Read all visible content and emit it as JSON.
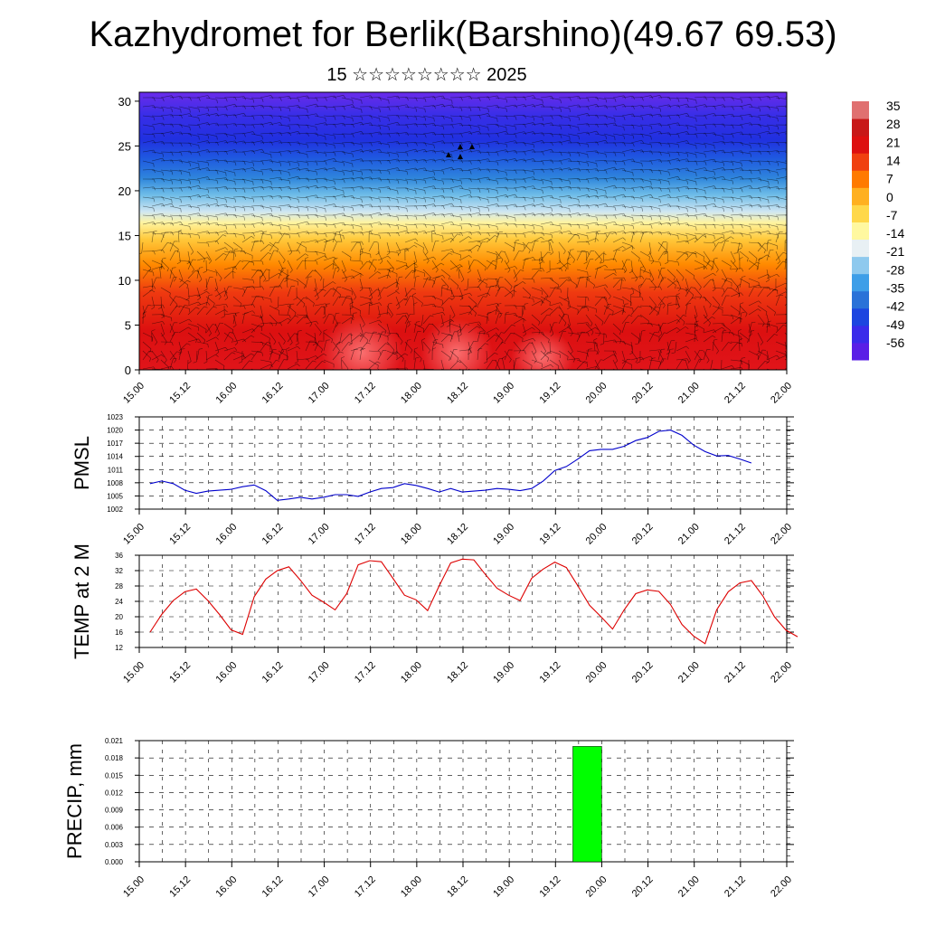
{
  "title": "Kazhydromet for Berlik(Barshino)(49.67 69.53)",
  "subtitle": "15 ☆☆☆☆☆☆☆☆ 2025",
  "colors": {
    "pmsl_line": "#0000cc",
    "temp_line": "#dd0000",
    "precip_bar": "#00ff00",
    "palette": [
      "#5a1fe6",
      "#3a2bea",
      "#1c45e0",
      "#2a72d8",
      "#3d9ee8",
      "#8ec9ee",
      "#e8f0f4",
      "#fff8a0",
      "#ffd84a",
      "#ffb020",
      "#ff7a00",
      "#f04010",
      "#dd1010",
      "#c81818",
      "#e07070"
    ]
  },
  "chart_data": [
    {
      "type": "heatmap",
      "name": "vertical-section",
      "x_ticks": [
        "15.00",
        "15.12",
        "16.00",
        "16.12",
        "17.00",
        "17.12",
        "18.00",
        "18.12",
        "19.00",
        "19.12",
        "20.00",
        "20.12",
        "21.00",
        "21.12",
        "22.00"
      ],
      "y_ticks": [
        "0",
        "5",
        "10",
        "15",
        "20",
        "25",
        "30"
      ],
      "ylim": [
        0,
        31
      ],
      "colorbar_labels": [
        "35",
        "28",
        "21",
        "14",
        "7",
        "0",
        "-7",
        "-14",
        "-21",
        "-28",
        "-35",
        "-42",
        "-49",
        "-56"
      ]
    },
    {
      "type": "line",
      "name": "pmsl",
      "ylabel": "PMSL",
      "x_ticks": [
        "15.00",
        "15.12",
        "16.00",
        "16.12",
        "17.00",
        "17.12",
        "18.00",
        "18.12",
        "19.00",
        "19.12",
        "20.00",
        "20.12",
        "21.00",
        "21.12",
        "22.00"
      ],
      "y_ticks": [
        "1023",
        "1020",
        "1017",
        "1014",
        "1011",
        "1008",
        "1005",
        "1002"
      ],
      "ylim": [
        1002,
        1023
      ],
      "values": [
        1007.8,
        1008.4,
        1007.8,
        1006.3,
        1005.6,
        1006.1,
        1006.3,
        1006.5,
        1007.1,
        1007.5,
        1006.2,
        1004,
        1004.3,
        1004.7,
        1004.3,
        1004.7,
        1005.3,
        1005.3,
        1004.9,
        1005.9,
        1006.7,
        1006.9,
        1007.8,
        1007.4,
        1006.7,
        1005.9,
        1006.7,
        1005.9,
        1006.1,
        1006.3,
        1006.7,
        1006.5,
        1006.2,
        1006.7,
        1008.4,
        1010.8,
        1011.7,
        1013.4,
        1015.3,
        1015.6,
        1015.6,
        1016.3,
        1017.6,
        1018.3,
        1019.7,
        1020,
        1018.8,
        1016.6,
        1015.1,
        1014.1,
        1014.2,
        1013.4,
        1012.5
      ]
    },
    {
      "type": "line",
      "name": "temp",
      "ylabel": "TEMP at 2 M",
      "x_ticks": [
        "15.00",
        "15.12",
        "16.00",
        "16.12",
        "17.00",
        "17.12",
        "18.00",
        "18.12",
        "19.00",
        "19.12",
        "20.00",
        "20.12",
        "21.00",
        "21.12",
        "22.00"
      ],
      "y_ticks": [
        "36",
        "32",
        "28",
        "24",
        "20",
        "16",
        "12"
      ],
      "ylim": [
        12,
        36
      ],
      "values": [
        16,
        20.6,
        24.2,
        26.5,
        27.2,
        24.2,
        20.6,
        16.6,
        15.4,
        25.2,
        29.8,
        32,
        33,
        29.5,
        25.6,
        23.8,
        21.8,
        26,
        33.5,
        34.6,
        34.3,
        30,
        25.6,
        24.4,
        21.6,
        28,
        34,
        35,
        34.8,
        31,
        27.4,
        25.6,
        24.2,
        30,
        32.4,
        34.2,
        32.8,
        28,
        23,
        20,
        16.8,
        21.8,
        26,
        27,
        26.6,
        23.2,
        18,
        15,
        13,
        21.8,
        26.5,
        28.8,
        29.4,
        25.4,
        20,
        16.5,
        14.8
      ]
    },
    {
      "type": "bar",
      "name": "precip",
      "ylabel": "PRECIP, mm",
      "x_ticks": [
        "15.00",
        "15.12",
        "16.00",
        "16.12",
        "17.00",
        "17.12",
        "18.00",
        "18.12",
        "19.00",
        "19.12",
        "20.00",
        "20.12",
        "21.00",
        "21.12",
        "22.00"
      ],
      "y_ticks": [
        "0.021",
        "0.018",
        "0.015",
        "0.012",
        "0.009",
        "0.006",
        "0.003",
        "0.000"
      ],
      "ylim": [
        0,
        0.021
      ],
      "bars": [
        {
          "x_start": 37.5,
          "x_end": 40,
          "value": 0.02
        }
      ]
    }
  ]
}
